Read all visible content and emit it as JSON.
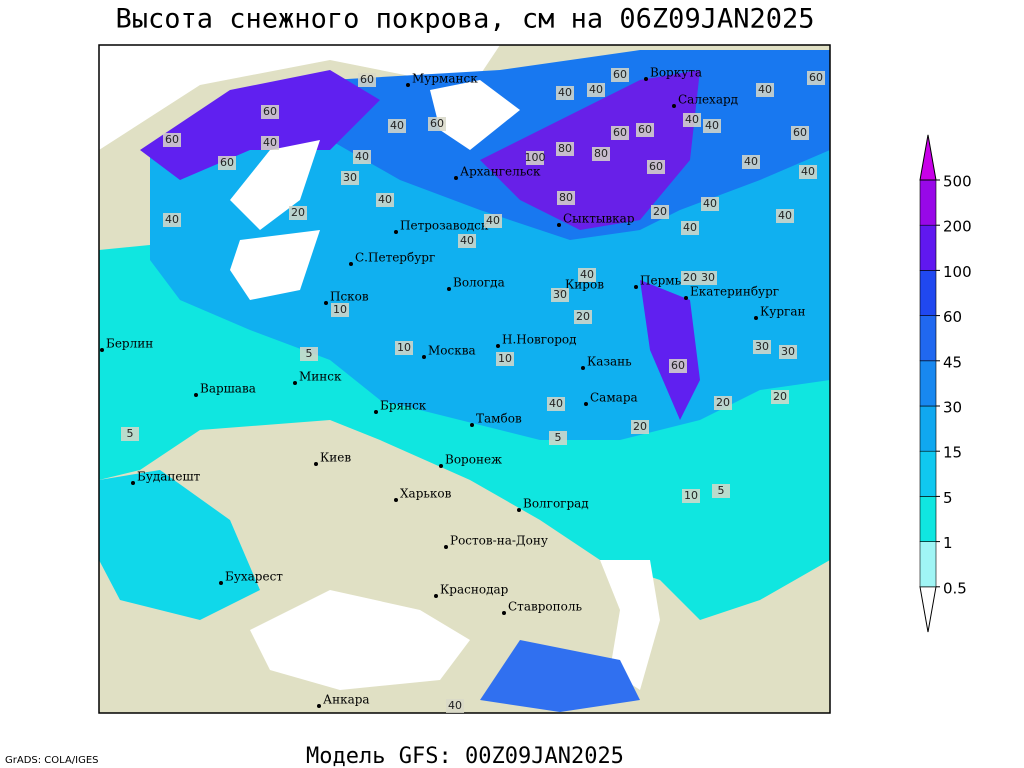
{
  "map": {
    "title": "Высота снежного покрова, см на 06Z09JAN2025",
    "model": "Модель GFS: 00Z09JAN2025",
    "credit": "GrADS: COLA/IGES",
    "cities": [
      "Мурманск",
      "Воркута",
      "Салехард",
      "Архангельск",
      "Петрозаводск",
      "Сыктывкар",
      "С.Петербург",
      "Вологда",
      "Киров",
      "Пермь",
      "Екатеринбург",
      "Псков",
      "Курган",
      "Берлин",
      "Н.Новгород",
      "Москва",
      "Казань",
      "Минск",
      "Варшава",
      "Брянск",
      "Самара",
      "Тамбов",
      "Воронеж",
      "Киев",
      "Харьков",
      "Будапешт",
      "Волгоград",
      "Ростов-на-Дону",
      "Бухарест",
      "Краснодар",
      "Ставрополь",
      "Анкара"
    ],
    "contour_labels": [
      60,
      60,
      40,
      60,
      40,
      60,
      60,
      40,
      30,
      40,
      20,
      40,
      100,
      80,
      80,
      60,
      60,
      40,
      40,
      60,
      40,
      40,
      40,
      60,
      60,
      60,
      40,
      40,
      80,
      40,
      40,
      40,
      40,
      40,
      20,
      30,
      20,
      40,
      30,
      20,
      10,
      5,
      10,
      10,
      60,
      30,
      30,
      20,
      20,
      20,
      40,
      5,
      5,
      10,
      5,
      40
    ],
    "legend": {
      "levels": [
        0.5,
        1,
        5,
        15,
        30,
        45,
        60,
        100,
        200,
        500
      ],
      "colors": [
        "#ffffff",
        "#a0f5f5",
        "#10e6e0",
        "#10c8f0",
        "#10a8f0",
        "#1888f0",
        "#2068f0",
        "#2048f0",
        "#6018f0",
        "#9808e8",
        "#c800e8"
      ]
    }
  }
}
